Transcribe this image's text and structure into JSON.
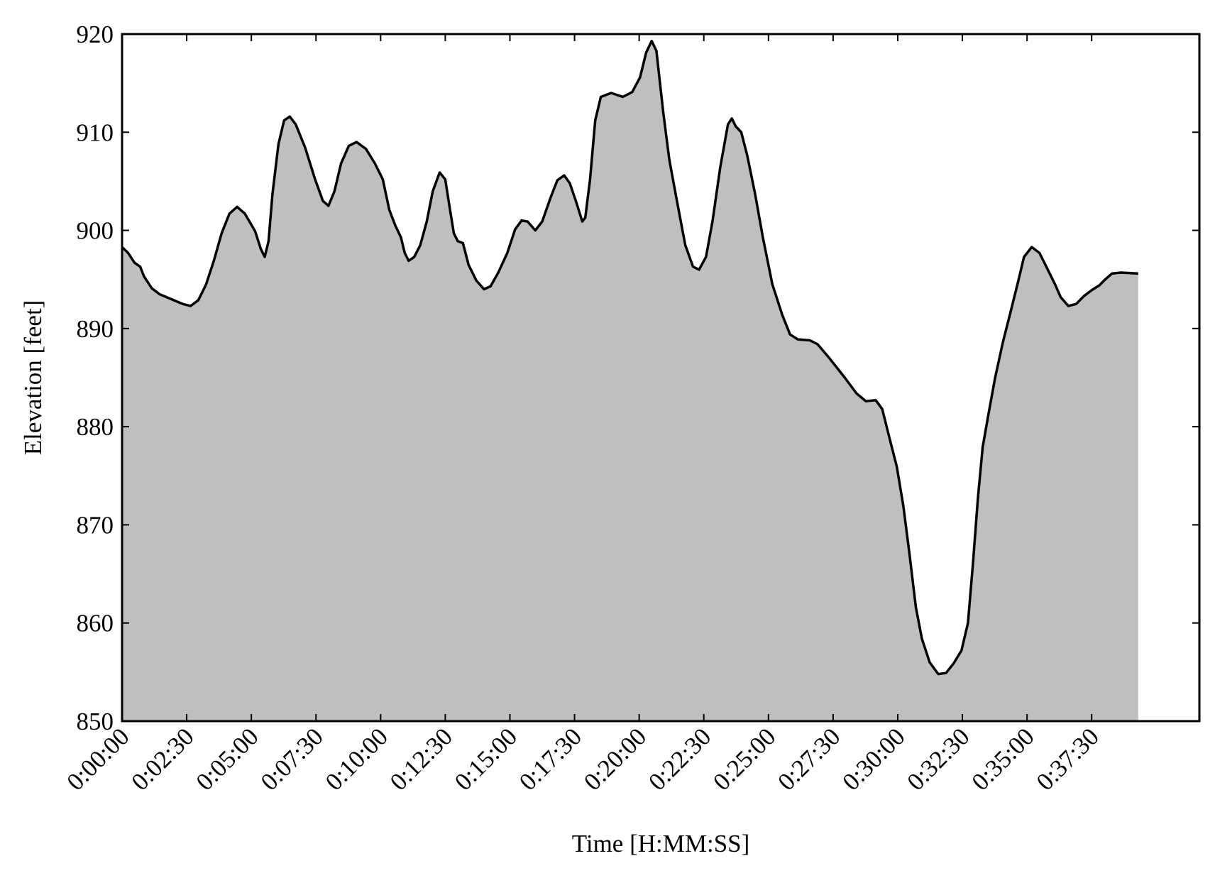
{
  "chart_data": {
    "type": "area",
    "xlabel": "Time [H:MM:SS]",
    "ylabel": "Elevation [feet]",
    "x": [
      0,
      14,
      29,
      42,
      51,
      69,
      87,
      114,
      141,
      159,
      177,
      195,
      213,
      231,
      249,
      267,
      285,
      309,
      322,
      331,
      340,
      349,
      363,
      376,
      389,
      403,
      425,
      448,
      466,
      479,
      493,
      508,
      526,
      544,
      566,
      587,
      605,
      620,
      634,
      647,
      656,
      665,
      678,
      692,
      707,
      721,
      737,
      750,
      761,
      770,
      779,
      791,
      804,
      822,
      840,
      855,
      873,
      894,
      912,
      927,
      941,
      959,
      975,
      994,
      1010,
      1026,
      1039,
      1053,
      1068,
      1075,
      1086,
      1098,
      1111,
      1135,
      1162,
      1184,
      1202,
      1216,
      1229,
      1240,
      1256,
      1270,
      1288,
      1307,
      1325,
      1339,
      1355,
      1370,
      1388,
      1406,
      1415,
      1424,
      1437,
      1451,
      1469,
      1487,
      1509,
      1532,
      1550,
      1568,
      1596,
      1614,
      1641,
      1677,
      1704,
      1726,
      1749,
      1764,
      1780,
      1798,
      1813,
      1827,
      1842,
      1856,
      1874,
      1894,
      1912,
      1930,
      1948,
      1963,
      1975,
      1986,
      1997,
      2011,
      2026,
      2044,
      2062,
      2080,
      2093,
      2111,
      2129,
      2147,
      2165,
      2178,
      2196,
      2214,
      2232,
      2250,
      2268,
      2279,
      2297,
      2318,
      2358
    ],
    "values": [
      898.3,
      897.7,
      896.7,
      896.3,
      895.3,
      894.1,
      893.5,
      893.0,
      892.5,
      892.3,
      892.9,
      894.5,
      896.9,
      899.7,
      901.7,
      902.4,
      901.7,
      899.9,
      898.1,
      897.3,
      898.9,
      903.7,
      908.8,
      911.2,
      911.6,
      910.8,
      908.4,
      905.2,
      903.0,
      902.5,
      904.0,
      906.8,
      908.6,
      909.0,
      908.3,
      906.8,
      905.2,
      902.1,
      900.5,
      899.3,
      897.7,
      896.9,
      897.3,
      898.5,
      900.9,
      904.0,
      905.9,
      905.2,
      902.1,
      899.7,
      898.9,
      898.7,
      896.5,
      894.9,
      894.0,
      894.3,
      895.7,
      897.7,
      900.1,
      901.0,
      900.9,
      900.0,
      900.9,
      903.3,
      905.1,
      905.6,
      904.8,
      903.0,
      900.9,
      901.3,
      905.2,
      911.2,
      913.6,
      914.0,
      913.6,
      914.1,
      915.6,
      918.1,
      919.3,
      918.3,
      912.0,
      907.2,
      902.9,
      898.5,
      896.3,
      896.0,
      897.3,
      900.9,
      906.4,
      910.8,
      911.4,
      910.6,
      910.0,
      907.6,
      903.7,
      899.3,
      894.5,
      891.4,
      889.4,
      888.9,
      888.8,
      888.4,
      887.0,
      885.0,
      883.4,
      882.6,
      882.7,
      881.8,
      879.0,
      875.9,
      871.9,
      867.1,
      861.6,
      858.4,
      856.0,
      854.8,
      854.9,
      855.9,
      857.2,
      860.0,
      866.3,
      872.7,
      877.9,
      881.4,
      885.0,
      888.6,
      891.7,
      894.9,
      897.3,
      898.3,
      897.7,
      896.1,
      894.5,
      893.2,
      892.3,
      892.5,
      893.3,
      893.9,
      894.4,
      894.9,
      895.6,
      895.7,
      895.6
    ],
    "color": "#bfbfbf",
    "line_color": "#000000",
    "xlim": [
      0,
      2500
    ],
    "ylim": [
      850,
      920
    ],
    "xticks": [
      {
        "value": 0,
        "label": "0:00:00"
      },
      {
        "value": 150,
        "label": "0:02:30"
      },
      {
        "value": 300,
        "label": "0:05:00"
      },
      {
        "value": 450,
        "label": "0:07:30"
      },
      {
        "value": 600,
        "label": "0:10:00"
      },
      {
        "value": 750,
        "label": "0:12:30"
      },
      {
        "value": 900,
        "label": "0:15:00"
      },
      {
        "value": 1050,
        "label": "0:17:30"
      },
      {
        "value": 1200,
        "label": "0:20:00"
      },
      {
        "value": 1350,
        "label": "0:22:30"
      },
      {
        "value": 1500,
        "label": "0:25:00"
      },
      {
        "value": 1650,
        "label": "0:27:30"
      },
      {
        "value": 1800,
        "label": "0:30:00"
      },
      {
        "value": 1950,
        "label": "0:32:30"
      },
      {
        "value": 2100,
        "label": "0:35:00"
      },
      {
        "value": 2250,
        "label": "0:37:30"
      }
    ],
    "yticks": [
      850,
      860,
      870,
      880,
      890,
      900,
      910,
      920
    ]
  }
}
